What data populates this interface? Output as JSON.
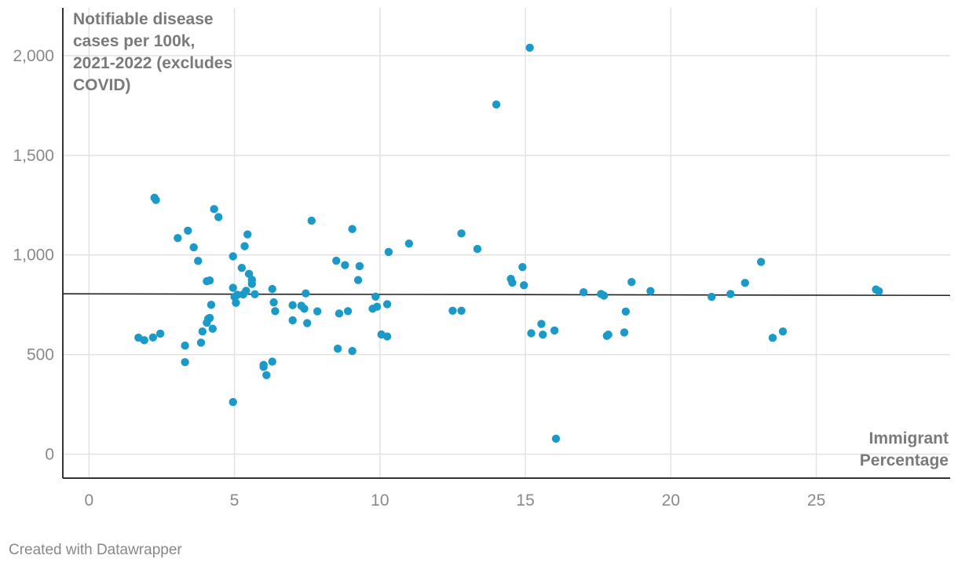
{
  "chart_data": {
    "type": "scatter",
    "title": "",
    "ylabel_lines": [
      "Notifiable disease",
      "cases per 100k,",
      "2021-2022 (excludes",
      "COVID)"
    ],
    "xlabel_lines": [
      "Immigrant",
      "Percentage"
    ],
    "xlim": [
      -0.9,
      29.6
    ],
    "ylim": [
      -120,
      2240
    ],
    "x_ticks": [
      0,
      5,
      10,
      15,
      20,
      25
    ],
    "x_tick_labels": [
      "0",
      "5",
      "10",
      "15",
      "20",
      "25"
    ],
    "y_ticks": [
      0,
      500,
      1000,
      1500,
      2000
    ],
    "y_tick_labels": [
      "0",
      "500",
      "1,000",
      "1,500",
      "2,000"
    ],
    "grid": true,
    "trendline": {
      "x": [
        -0.9,
        29.6
      ],
      "y": [
        805,
        797
      ]
    },
    "colors": {
      "point": "#1b9ac9",
      "trend": "#222222",
      "grid": "#e2e2e2",
      "axis": "#333333"
    },
    "series": [
      {
        "x": [
          1.7,
          1.9,
          2.2,
          2.25,
          2.3,
          2.45,
          3.05,
          3.3,
          3.3,
          3.4,
          3.6,
          3.75,
          3.85,
          3.9,
          4.05,
          4.05,
          4.1,
          4.15,
          4.15,
          4.2,
          4.25,
          4.3,
          4.45,
          4.95,
          4.95,
          4.95,
          5.0,
          5.05,
          5.1,
          5.25,
          5.3,
          5.35,
          5.4,
          5.45,
          5.5,
          5.6,
          5.6,
          5.7,
          6.0,
          6.0,
          6.1,
          6.3,
          6.3,
          6.35,
          6.4,
          7.0,
          7.0,
          7.3,
          7.4,
          7.45,
          7.5,
          7.65,
          7.85,
          8.5,
          8.55,
          8.6,
          8.8,
          8.9,
          9.05,
          9.05,
          9.25,
          9.3,
          9.75,
          9.85,
          9.9,
          10.05,
          10.25,
          10.25,
          10.3,
          11.0,
          12.5,
          12.8,
          12.8,
          13.35,
          14.0,
          14.5,
          14.55,
          14.9,
          14.95,
          15.15,
          15.2,
          15.55,
          15.6,
          16.0,
          16.05,
          17.0,
          17.6,
          17.7,
          17.8,
          17.85,
          18.4,
          18.45,
          18.65,
          19.3,
          21.4,
          22.05,
          22.55,
          23.1,
          23.5,
          23.85,
          27.05,
          27.15
        ],
        "y": [
          585,
          572,
          586,
          1287,
          1276,
          605,
          1085,
          462,
          545,
          1122,
          1038,
          970,
          560,
          616,
          868,
          660,
          680,
          684,
          872,
          750,
          630,
          1230,
          1190,
          835,
          262,
          993,
          790,
          760,
          800,
          935,
          802,
          1044,
          820,
          1103,
          905,
          855,
          875,
          803,
          438,
          448,
          397,
          465,
          829,
          762,
          718,
          748,
          672,
          745,
          730,
          807,
          658,
          1172,
          717,
          971,
          530,
          706,
          949,
          718,
          1130,
          518,
          874,
          944,
          730,
          791,
          740,
          601,
          591,
          753,
          1015,
          1057,
          720,
          1108,
          720,
          1030,
          1755,
          880,
          861,
          939,
          848,
          2040,
          607,
          654,
          600,
          621,
          78,
          813,
          804,
          796,
          594,
          600,
          611,
          716,
          864,
          819,
          790,
          804,
          860,
          965,
          584,
          616,
          827,
          818
        ]
      }
    ]
  },
  "footer": {
    "credit": "Created with Datawrapper"
  }
}
